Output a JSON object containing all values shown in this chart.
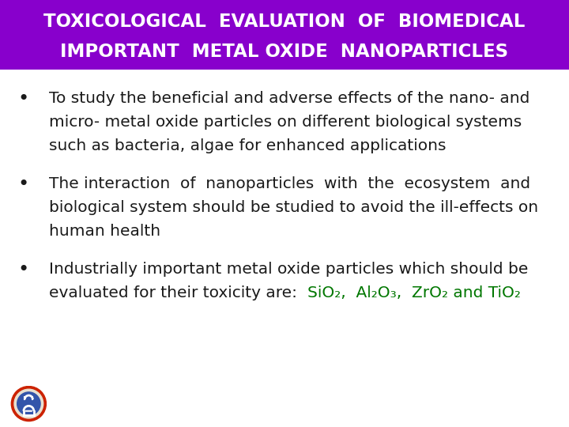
{
  "title_line1": "TOXICOLOGICAL  EVALUATION  OF  BIOMEDICAL",
  "title_line2": "IMPORTANT  METAL OXIDE  NANOPARTICLES",
  "title_bg_color": "#8800CC",
  "title_text_color": "#FFFFFF",
  "bg_color": "#FFFFFF",
  "bullet_color": "#1a1a1a",
  "bullet1_line1": "To study the beneficial and adverse effects of the nano- and",
  "bullet1_line2": "micro- metal oxide particles on different biological systems",
  "bullet1_line3": "such as bacteria, algae for enhanced applications",
  "bullet2_line1": "The interaction  of  nanoparticles  with  the  ecosystem  and",
  "bullet2_line2": "biological system should be studied to avoid the ill-effects on",
  "bullet2_line3": "human health",
  "bullet3_line1": "Industrially important metal oxide particles which should be",
  "bullet3_line2_prefix": "evaluated for their toxicity are:  ",
  "bullet3_line2_colored": "SiO₂,  Al₂O₃,  ZrO₂ and TiO₂",
  "green_color": "#007700",
  "text_fontsize": 14.5,
  "title_fontsize": 16.5
}
